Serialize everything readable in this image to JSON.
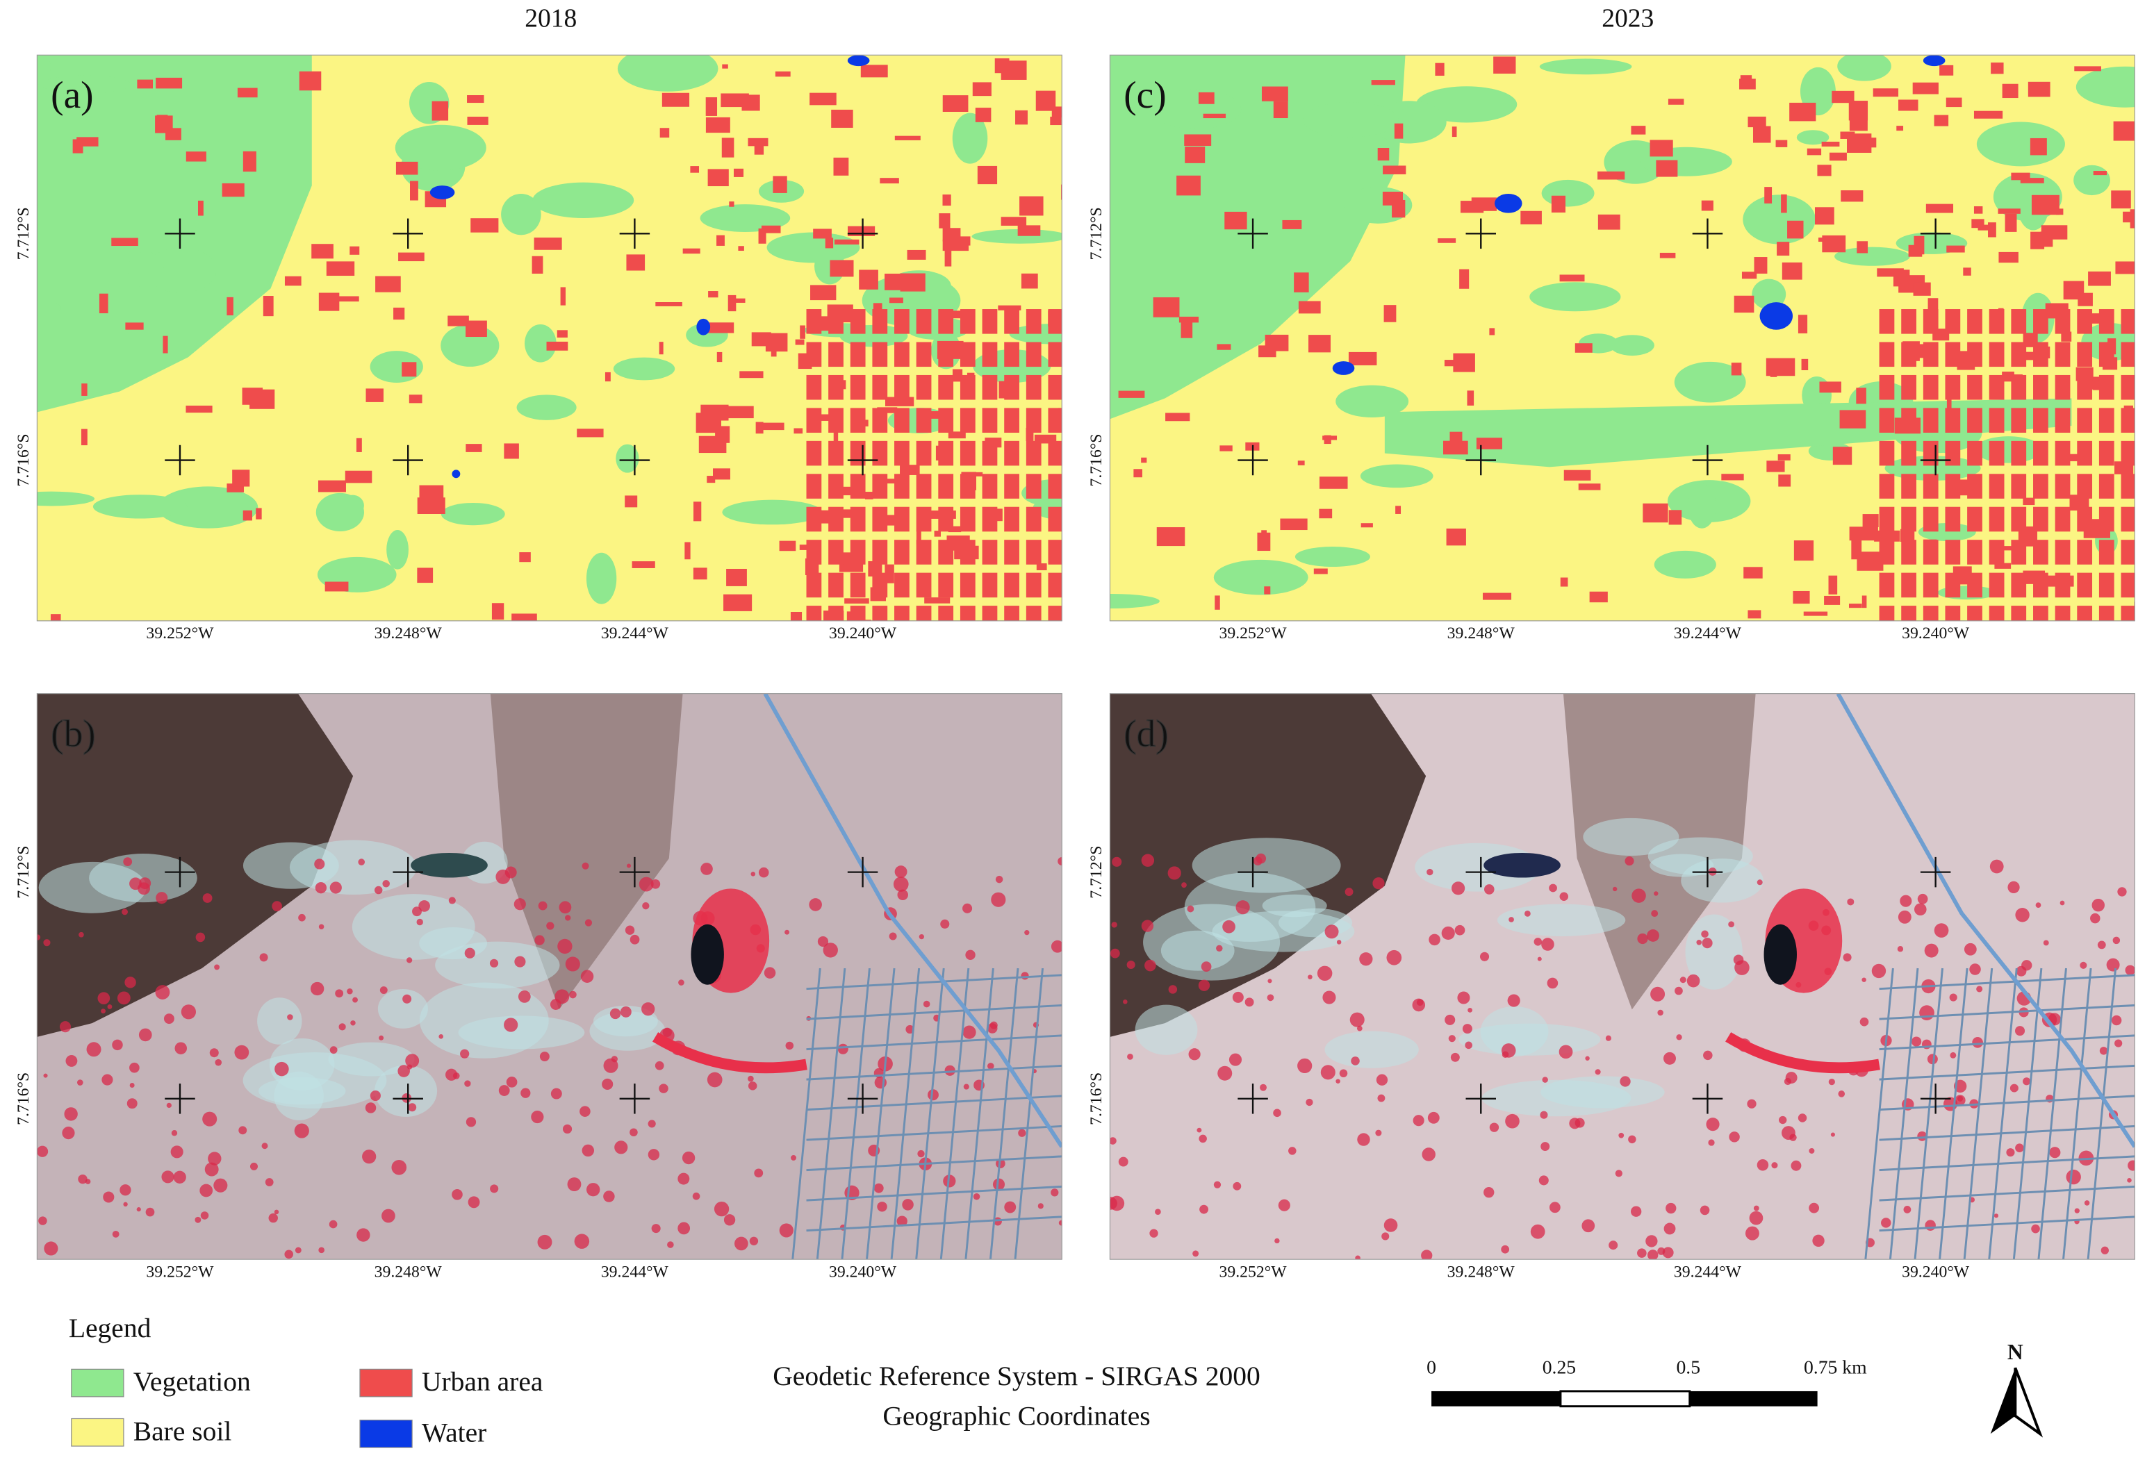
{
  "titles": [
    "2018",
    "2023"
  ],
  "panels": [
    {
      "label": "(a)"
    },
    {
      "label": "(b)"
    },
    {
      "label": "(c)"
    },
    {
      "label": "(d)"
    }
  ],
  "longitude_labels": [
    "39.252°W",
    "39.248°W",
    "39.244°W",
    "39.240°W"
  ],
  "latitude_labels": [
    "7.712°S",
    "7.716°S"
  ],
  "legend": {
    "title": "Legend",
    "items": [
      {
        "label": "Vegetation",
        "color": "#8fe88f"
      },
      {
        "label": "Bare soil",
        "color": "#fbf583"
      },
      {
        "label": "Urban area",
        "color": "#ef4c4c"
      },
      {
        "label": "Water",
        "color": "#0a3ae6"
      }
    ]
  },
  "reference": [
    "Geodetic Reference System - SIRGAS 2000",
    "Geographic Coordinates"
  ],
  "scale_bar": {
    "labels": [
      "0",
      "0.25",
      "0.5",
      "0.75 km"
    ]
  },
  "north": "N"
}
